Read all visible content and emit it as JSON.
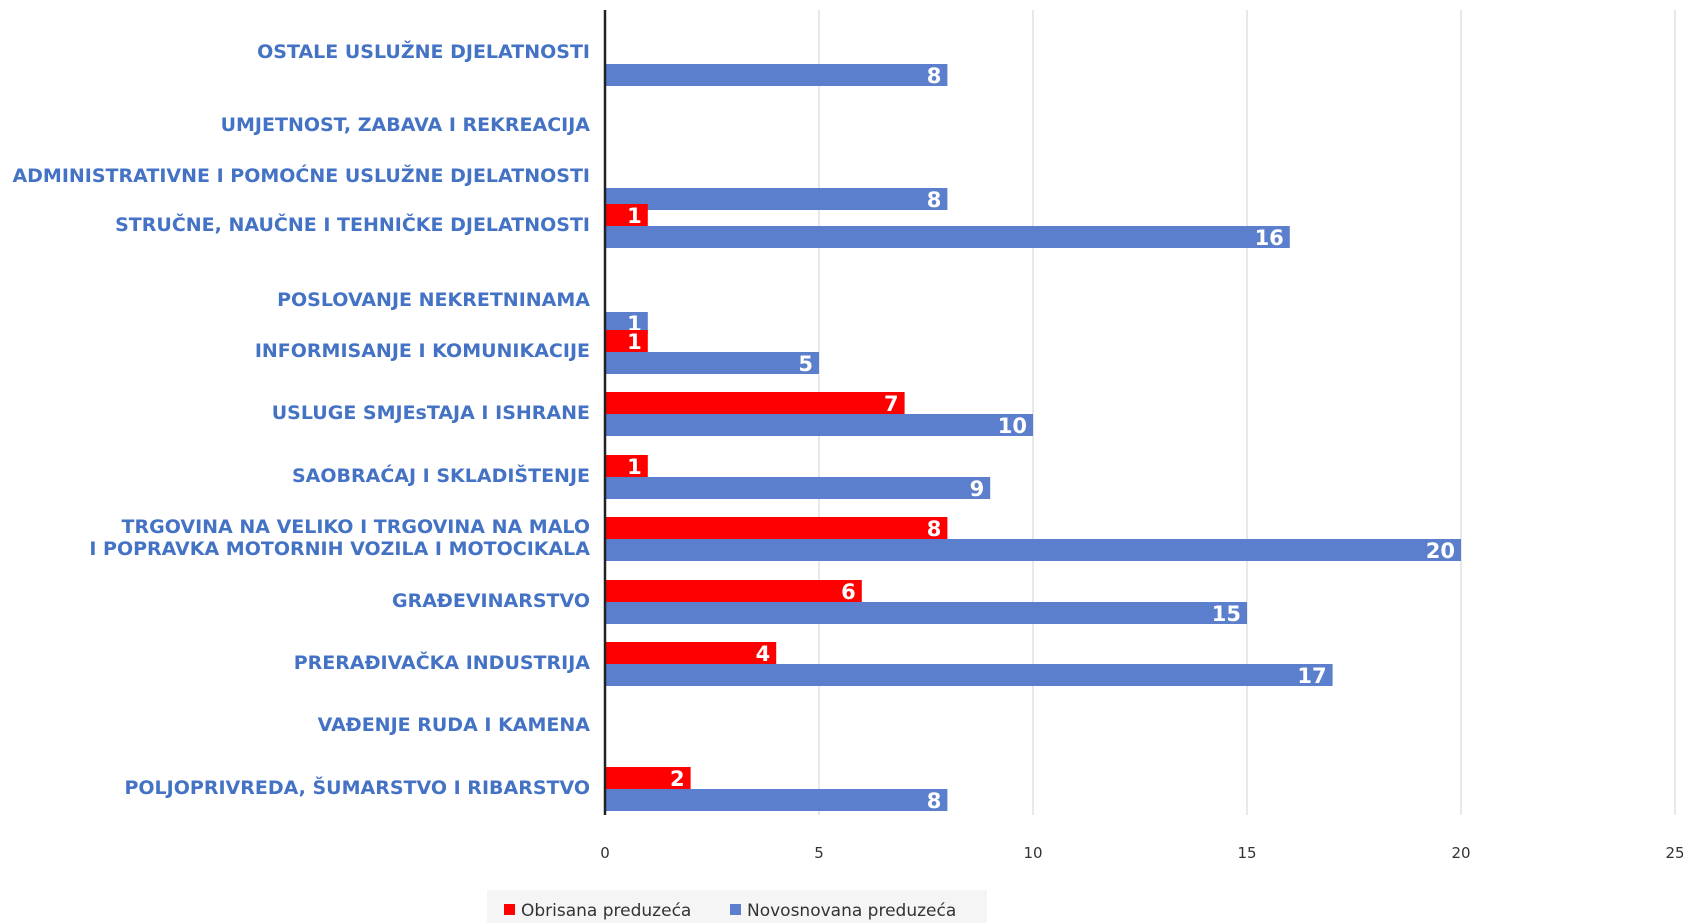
{
  "chart_data": {
    "type": "bar",
    "orientation": "horizontal",
    "categories": [
      [
        "OSTALE USLUŽNE DJELATNOSTI"
      ],
      [
        "UMJETNOST, ZABAVA I REKREACIJA"
      ],
      [
        "ADMINISTRATIVNE I POMOĆNE USLUŽNE DJELATNOSTI"
      ],
      [
        "STRUČNE, NAUČNE I TEHNIČKE DJELATNOSTI"
      ],
      [
        "POSLOVANJE NEKRETNINAMA"
      ],
      [
        "INFORMISANJE I KOMUNIKACIJE"
      ],
      [
        "USLUGE SMJEsTAJA I ISHRANE"
      ],
      [
        "SAOBRAĆAJ I SKLADIŠTENJE"
      ],
      [
        "TRGOVINA NA VELIKO I TRGOVINA NA MALO",
        "I POPRAVKA MOTORNIH VOZILA I MOTOCIKALA"
      ],
      [
        "GRAĐEVINARSTVO"
      ],
      [
        "PRERAĐIVAČKA INDUSTRIJA"
      ],
      [
        "VAĐENJE RUDA I KAMENA"
      ],
      [
        "POLJOPRIVREDA, ŠUMARSTVO I RIBARSTVO"
      ]
    ],
    "series": [
      {
        "name": "Obrisana preduzeća",
        "color": "#FF0000",
        "values": [
          null,
          null,
          null,
          1,
          null,
          1,
          7,
          1,
          8,
          6,
          4,
          null,
          2
        ]
      },
      {
        "name": "Novosnovana preduzeća",
        "color": "#5B7FCC",
        "values": [
          8,
          null,
          8,
          16,
          1,
          5,
          10,
          9,
          20,
          15,
          17,
          null,
          8
        ]
      }
    ],
    "xlim": [
      0,
      25
    ],
    "xticks": [
      0,
      5,
      10,
      15,
      20,
      25
    ],
    "grid": true,
    "legend_position": "bottom",
    "title": "",
    "xlabel": "",
    "ylabel": ""
  }
}
